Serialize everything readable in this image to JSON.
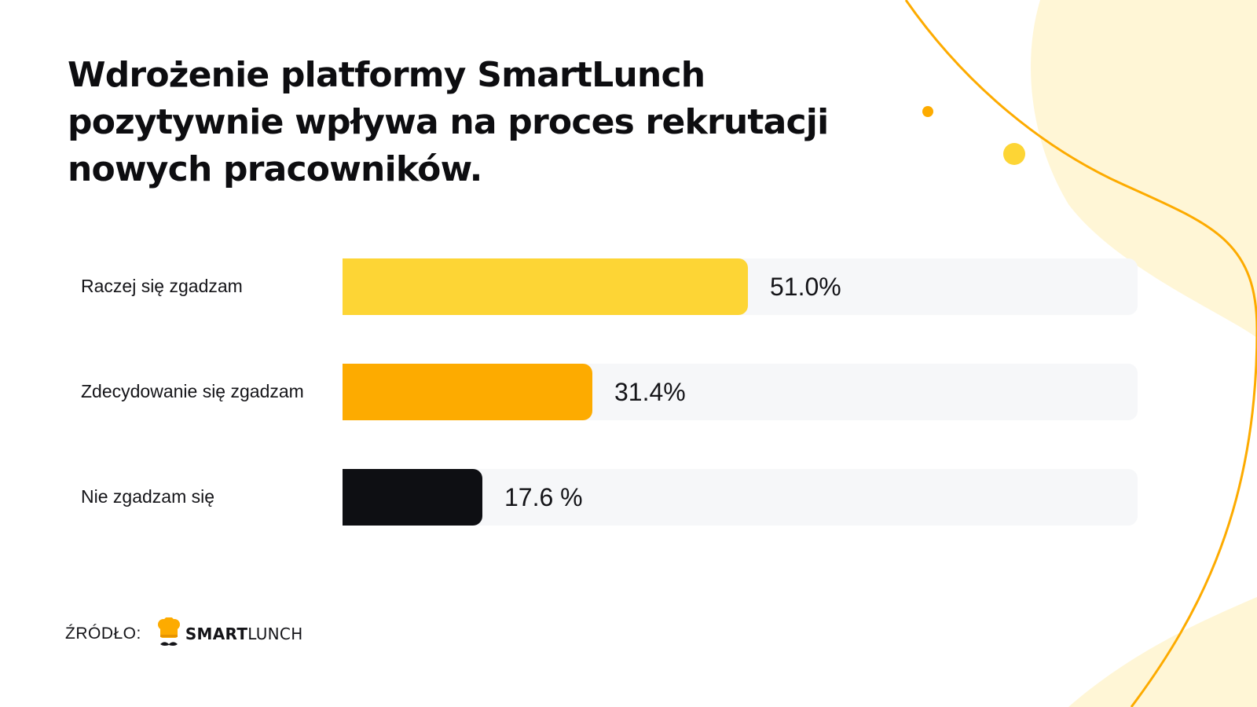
{
  "title": "Wdrożenie platformy SmartLunch pozytywnie wpływa na proces rekrutacji nowych pracowników.",
  "chart_data": {
    "type": "bar",
    "orientation": "horizontal",
    "title": "Wdrożenie platformy SmartLunch pozytywnie wpływa na proces rekrutacji nowych pracowników.",
    "xlim": [
      0,
      100
    ],
    "grid": false,
    "categories": [
      "Raczej się zgadzam",
      "Zdecydowanie się zgadzam",
      "Nie zgadzam się"
    ],
    "values": [
      51.0,
      31.4,
      17.6
    ],
    "value_labels": [
      "51.0%",
      "31.4%",
      "17.6 %"
    ],
    "bar_colors": [
      "#fdd535",
      "#fdab00",
      "#0e0f13"
    ]
  },
  "source": {
    "label": "ŹRÓDŁO:",
    "brand_strong": "SMART",
    "brand_light": "LUNCH",
    "logo_icon": "chef-hat-mustache-icon"
  },
  "colors": {
    "track": "#f6f7f9",
    "accent_yellow": "#fdd535",
    "accent_orange": "#fdab00",
    "blob": "#fff6d6"
  }
}
